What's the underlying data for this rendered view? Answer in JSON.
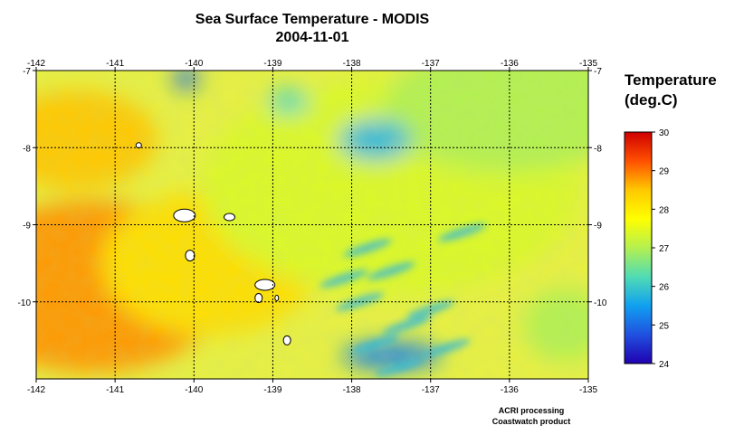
{
  "title": {
    "line1": "Sea Surface Temperature - MODIS",
    "line2": "2004-11-01"
  },
  "legend": {
    "title_line1": "Temperature",
    "title_line2": "(deg.C)",
    "min": 24,
    "max": 30,
    "ticks": [
      "30",
      "29",
      "28",
      "27",
      "26",
      "25",
      "24"
    ],
    "colors": [
      "#d00000",
      "#ff5000",
      "#ffc800",
      "#ffff00",
      "#b4f050",
      "#50dcb4",
      "#10a0f0",
      "#2050e0",
      "#2000b0"
    ]
  },
  "chart_data": {
    "type": "heatmap",
    "variable": "Sea Surface Temperature",
    "units": "deg.C",
    "xlim": [
      -142,
      -135
    ],
    "ylim": [
      -11,
      -7
    ],
    "x_ticks": [
      "-142",
      "-141",
      "-140",
      "-139",
      "-138",
      "-137",
      "-136",
      "-135"
    ],
    "y_ticks": [
      "-7",
      "-8",
      "-9",
      "-10"
    ],
    "grid": true,
    "regions": [
      {
        "lon": -141.3,
        "lat": -9.8,
        "temp": 28.8
      },
      {
        "lon": -141.5,
        "lat": -7.9,
        "temp": 28.5
      },
      {
        "lon": -139.8,
        "lat": -9.5,
        "temp": 28.2
      },
      {
        "lon": -137.5,
        "lat": -8.5,
        "temp": 27.4
      },
      {
        "lon": -136.0,
        "lat": -7.5,
        "temp": 27.0
      },
      {
        "lon": -137.7,
        "lat": -7.9,
        "temp": 25.8
      },
      {
        "lon": -140.1,
        "lat": -7.1,
        "temp": 25.0
      },
      {
        "lon": -137.5,
        "lat": -10.7,
        "temp": 25.2
      },
      {
        "lon": -138.8,
        "lat": -7.4,
        "temp": 26.2
      },
      {
        "lon": -135.3,
        "lat": -10.3,
        "temp": 27.0
      }
    ]
  },
  "credits": {
    "line1": "ACRI processing",
    "line2": "Coastwatch product"
  }
}
